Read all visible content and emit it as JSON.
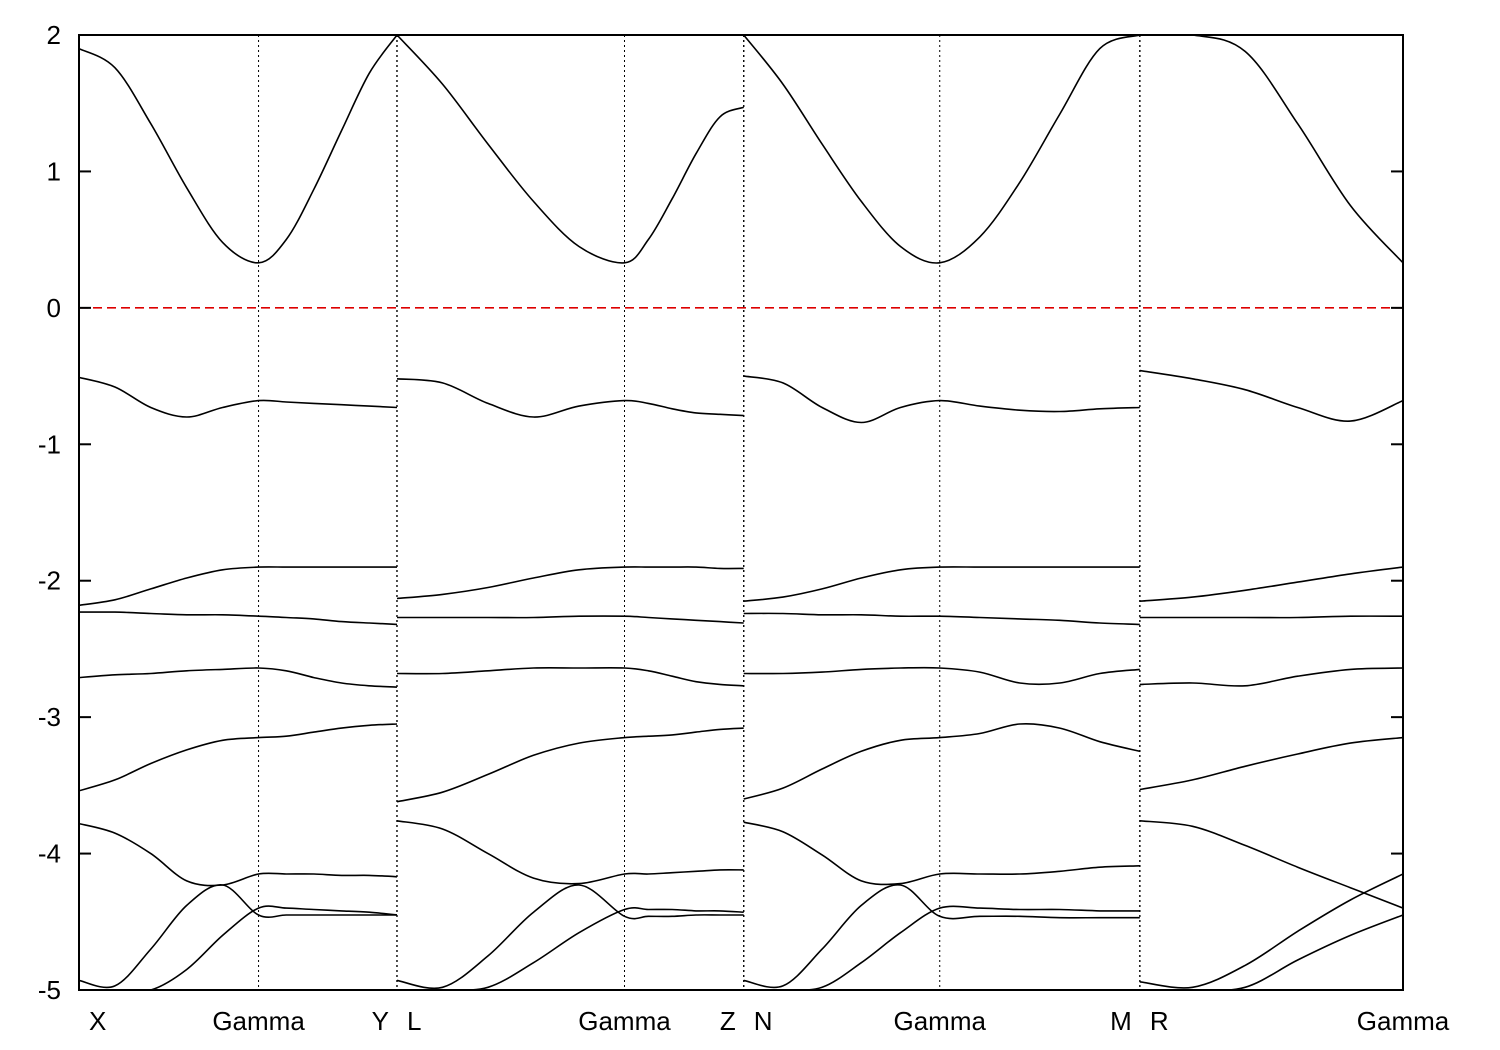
{
  "chart_data": {
    "type": "line",
    "title": "",
    "xlabel": "",
    "ylabel": "",
    "ylim": [
      -5,
      2
    ],
    "xlim": [
      0,
      4.83
    ],
    "y_ticks": [
      2,
      1,
      0,
      -1,
      -2,
      -3,
      -4,
      -5
    ],
    "y_tick_labels": [
      "2",
      "1",
      "0",
      "-1",
      "-2",
      "-3",
      "-4",
      "-5"
    ],
    "k_points": [
      {
        "label": "X",
        "x": 0.0
      },
      {
        "label": "Gamma",
        "x": 0.655
      },
      {
        "label": "Y",
        "x": 1.16
      },
      {
        "label": "L",
        "x": 1.16
      },
      {
        "label": "Gamma",
        "x": 1.99
      },
      {
        "label": "Z",
        "x": 2.425
      },
      {
        "label": "N",
        "x": 2.425
      },
      {
        "label": "Gamma",
        "x": 3.14
      },
      {
        "label": "M",
        "x": 3.87
      },
      {
        "label": "R",
        "x": 3.87
      },
      {
        "label": "Gamma",
        "x": 4.83
      }
    ],
    "segment_boundaries": [
      1.16,
      2.425,
      3.87
    ],
    "fermi_level": 0,
    "colors": {
      "bands": "#000000",
      "fermi_line": "#dd0000"
    },
    "grid": false,
    "segments": [
      {
        "name": "X-Gamma-Y",
        "x": [
          0.0,
          0.131,
          0.262,
          0.393,
          0.524,
          0.655,
          0.756,
          0.857,
          0.958,
          1.059,
          1.16
        ],
        "bands": [
          [
            -5.0,
            -5.0,
            -5.0,
            -5.0,
            -5.0,
            -5.0,
            -5.0,
            -5.0,
            -5.0,
            -5.0,
            -5.0
          ],
          [
            -4.93,
            -4.97,
            -4.7,
            -4.38,
            -4.23,
            -4.45,
            -4.45,
            -4.45,
            -4.45,
            -4.45,
            -4.45
          ],
          [
            -5.0,
            -5.0,
            -5.0,
            -4.85,
            -4.6,
            -4.4,
            -4.4,
            -4.41,
            -4.42,
            -4.43,
            -4.45
          ],
          [
            -3.78,
            -3.85,
            -4.0,
            -4.2,
            -4.23,
            -4.15,
            -4.15,
            -4.15,
            -4.16,
            -4.16,
            -4.17
          ],
          [
            -3.54,
            -3.46,
            -3.34,
            -3.24,
            -3.17,
            -3.15,
            -3.14,
            -3.11,
            -3.08,
            -3.06,
            -3.05
          ],
          [
            -2.71,
            -2.69,
            -2.68,
            -2.66,
            -2.65,
            -2.64,
            -2.66,
            -2.71,
            -2.75,
            -2.77,
            -2.78
          ],
          [
            -2.23,
            -2.23,
            -2.24,
            -2.25,
            -2.25,
            -2.26,
            -2.27,
            -2.28,
            -2.3,
            -2.31,
            -2.32
          ],
          [
            -2.18,
            -2.14,
            -2.06,
            -1.98,
            -1.92,
            -1.9,
            -1.9,
            -1.9,
            -1.9,
            -1.9,
            -1.9
          ],
          [
            -0.51,
            -0.58,
            -0.73,
            -0.8,
            -0.73,
            -0.68,
            -0.69,
            -0.7,
            -0.71,
            -0.72,
            -0.73
          ],
          [
            1.9,
            1.76,
            1.35,
            0.88,
            0.48,
            0.33,
            0.5,
            0.87,
            1.3,
            1.72,
            2.0
          ]
        ]
      },
      {
        "name": "L-Gamma-Z",
        "x": [
          1.16,
          1.326,
          1.492,
          1.658,
          1.824,
          1.99,
          2.077,
          2.164,
          2.251,
          2.338,
          2.425
        ],
        "bands": [
          [
            -5.0,
            -5.0,
            -5.0,
            -5.0,
            -5.0,
            -5.0,
            -5.0,
            -5.0,
            -5.0,
            -5.0,
            -5.0
          ],
          [
            -4.93,
            -4.98,
            -4.75,
            -4.43,
            -4.23,
            -4.46,
            -4.46,
            -4.46,
            -4.45,
            -4.45,
            -4.45
          ],
          [
            -5.0,
            -5.0,
            -4.98,
            -4.8,
            -4.58,
            -4.41,
            -4.41,
            -4.41,
            -4.42,
            -4.42,
            -4.43
          ],
          [
            -3.76,
            -3.82,
            -4.0,
            -4.18,
            -4.22,
            -4.15,
            -4.15,
            -4.14,
            -4.13,
            -4.12,
            -4.12
          ],
          [
            -3.62,
            -3.55,
            -3.42,
            -3.28,
            -3.19,
            -3.15,
            -3.14,
            -3.13,
            -3.11,
            -3.09,
            -3.08
          ],
          [
            -2.68,
            -2.68,
            -2.66,
            -2.64,
            -2.64,
            -2.64,
            -2.66,
            -2.7,
            -2.74,
            -2.76,
            -2.77
          ],
          [
            -2.27,
            -2.27,
            -2.27,
            -2.27,
            -2.26,
            -2.26,
            -2.27,
            -2.28,
            -2.29,
            -2.3,
            -2.31
          ],
          [
            -2.13,
            -2.1,
            -2.05,
            -1.98,
            -1.92,
            -1.9,
            -1.9,
            -1.9,
            -1.9,
            -1.91,
            -1.91
          ],
          [
            -0.52,
            -0.55,
            -0.7,
            -0.8,
            -0.72,
            -0.68,
            -0.7,
            -0.74,
            -0.77,
            -0.78,
            -0.79
          ],
          [
            2.0,
            1.64,
            1.2,
            0.78,
            0.45,
            0.33,
            0.5,
            0.8,
            1.13,
            1.4,
            1.47
          ]
        ]
      },
      {
        "name": "N-Gamma-M",
        "x": [
          2.425,
          2.568,
          2.711,
          2.854,
          2.997,
          3.14,
          3.286,
          3.432,
          3.578,
          3.724,
          3.87
        ],
        "bands": [
          [
            -5.0,
            -5.0,
            -5.0,
            -5.0,
            -5.0,
            -5.0,
            -5.0,
            -5.0,
            -5.0,
            -5.0,
            -5.0
          ],
          [
            -4.93,
            -4.97,
            -4.7,
            -4.38,
            -4.23,
            -4.46,
            -4.46,
            -4.46,
            -4.47,
            -4.47,
            -4.47
          ],
          [
            -5.0,
            -5.0,
            -4.98,
            -4.8,
            -4.58,
            -4.4,
            -4.4,
            -4.41,
            -4.41,
            -4.42,
            -4.42
          ],
          [
            -3.77,
            -3.84,
            -4.01,
            -4.2,
            -4.22,
            -4.15,
            -4.15,
            -4.15,
            -4.13,
            -4.1,
            -4.09
          ],
          [
            -3.6,
            -3.52,
            -3.38,
            -3.25,
            -3.17,
            -3.15,
            -3.12,
            -3.05,
            -3.08,
            -3.18,
            -3.25
          ],
          [
            -2.68,
            -2.68,
            -2.67,
            -2.65,
            -2.64,
            -2.64,
            -2.67,
            -2.75,
            -2.75,
            -2.68,
            -2.65
          ],
          [
            -2.24,
            -2.24,
            -2.25,
            -2.25,
            -2.26,
            -2.26,
            -2.27,
            -2.28,
            -2.29,
            -2.31,
            -2.32
          ],
          [
            -2.15,
            -2.12,
            -2.06,
            -1.98,
            -1.92,
            -1.9,
            -1.9,
            -1.9,
            -1.9,
            -1.9,
            -1.9
          ],
          [
            -0.5,
            -0.55,
            -0.73,
            -0.84,
            -0.73,
            -0.68,
            -0.72,
            -0.75,
            -0.76,
            -0.74,
            -0.73
          ],
          [
            2.0,
            1.64,
            1.2,
            0.78,
            0.45,
            0.33,
            0.52,
            0.92,
            1.42,
            1.9,
            2.0
          ]
        ]
      },
      {
        "name": "R-Gamma",
        "x": [
          3.87,
          4.062,
          4.254,
          4.446,
          4.638,
          4.83
        ],
        "bands": [
          [
            -5.0,
            -5.0,
            -5.0,
            -5.0,
            -5.0,
            -5.0
          ],
          [
            -4.94,
            -4.98,
            -4.82,
            -4.57,
            -4.34,
            -4.15
          ],
          [
            -5.0,
            -5.0,
            -4.98,
            -4.78,
            -4.6,
            -4.45
          ],
          [
            -3.76,
            -3.8,
            -3.94,
            -4.1,
            -4.25,
            -4.4
          ],
          [
            -3.53,
            -3.46,
            -3.36,
            -3.27,
            -3.19,
            -3.15
          ],
          [
            -2.76,
            -2.75,
            -2.77,
            -2.7,
            -2.65,
            -2.64
          ],
          [
            -2.27,
            -2.27,
            -2.27,
            -2.27,
            -2.26,
            -2.26
          ],
          [
            -2.15,
            -2.12,
            -2.07,
            -2.01,
            -1.95,
            -1.9
          ],
          [
            -0.46,
            -0.52,
            -0.6,
            -0.73,
            -0.83,
            -0.68
          ],
          [
            2.0,
            2.0,
            1.88,
            1.35,
            0.75,
            0.33
          ]
        ]
      }
    ]
  }
}
